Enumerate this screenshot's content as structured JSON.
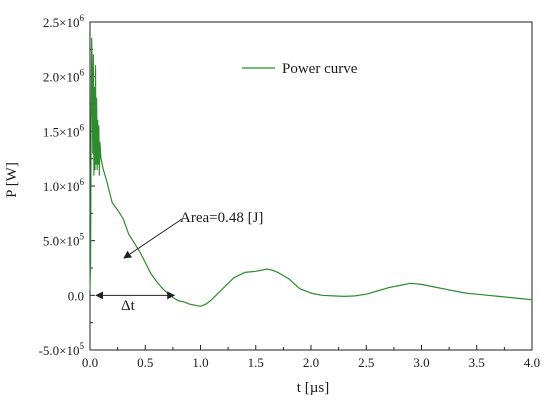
{
  "chart_data": {
    "type": "line",
    "title": "",
    "xlabel": "t [µs]",
    "ylabel": "P [W]",
    "xlim": [
      0.0,
      4.0
    ],
    "ylim": [
      -500000,
      2500000
    ],
    "x_ticks": [
      0.0,
      0.5,
      1.0,
      1.5,
      2.0,
      2.5,
      3.0,
      3.5,
      4.0
    ],
    "x_tick_labels": [
      "0.0",
      "0.5",
      "1.0",
      "1.5",
      "2.0",
      "2.5",
      "3.0",
      "3.5",
      "4.0"
    ],
    "y_ticks": [
      -500000,
      0,
      500000,
      1000000,
      1500000,
      2000000,
      2500000
    ],
    "y_tick_labels": [
      {
        "mantissa": "-5.0×10",
        "exp": "5"
      },
      {
        "mantissa": "0.0",
        "exp": ""
      },
      {
        "mantissa": "5.0×10",
        "exp": "5"
      },
      {
        "mantissa": "1.0×10",
        "exp": "6"
      },
      {
        "mantissa": "1.5×10",
        "exp": "6"
      },
      {
        "mantissa": "2.0×10",
        "exp": "6"
      },
      {
        "mantissa": "2.5×10",
        "exp": "6"
      }
    ],
    "grid": false,
    "legend": "top-right",
    "series": [
      {
        "name": "Power curve",
        "color": "#2e8b2e",
        "x": [
          0.0,
          0.005,
          0.01,
          0.015,
          0.02,
          0.025,
          0.03,
          0.035,
          0.04,
          0.045,
          0.05,
          0.055,
          0.06,
          0.065,
          0.07,
          0.075,
          0.08,
          0.085,
          0.09,
          0.1,
          0.12,
          0.15,
          0.2,
          0.25,
          0.3,
          0.35,
          0.4,
          0.45,
          0.5,
          0.55,
          0.6,
          0.65,
          0.7,
          0.75,
          0.8,
          0.85,
          0.9,
          0.95,
          1.0,
          1.05,
          1.1,
          1.2,
          1.3,
          1.4,
          1.5,
          1.6,
          1.65,
          1.7,
          1.8,
          1.9,
          2.0,
          2.1,
          2.2,
          2.3,
          2.4,
          2.5,
          2.6,
          2.7,
          2.8,
          2.9,
          3.0,
          3.1,
          3.2,
          3.3,
          3.4,
          3.5,
          3.6,
          3.7,
          3.8,
          3.9,
          4.0
        ],
        "y": [
          50000,
          300000,
          1500000,
          2350000,
          1900000,
          1300000,
          2200000,
          1100000,
          1900000,
          1150000,
          2100000,
          1200000,
          1800000,
          1150000,
          1600000,
          1200000,
          1550000,
          1100000,
          1400000,
          1250000,
          1150000,
          1050000,
          850000,
          780000,
          700000,
          560000,
          480000,
          400000,
          300000,
          200000,
          130000,
          70000,
          20000,
          -20000,
          -50000,
          -60000,
          -80000,
          -90000,
          -100000,
          -80000,
          -40000,
          60000,
          160000,
          210000,
          220000,
          240000,
          230000,
          210000,
          150000,
          60000,
          20000,
          0,
          -5000,
          -10000,
          -5000,
          10000,
          40000,
          70000,
          90000,
          110000,
          100000,
          80000,
          60000,
          40000,
          20000,
          10000,
          0,
          -10000,
          -20000,
          -30000,
          -40000
        ]
      }
    ],
    "annotations": [
      {
        "text": "Area=0.48 [J]"
      },
      {
        "text": "Δt"
      }
    ]
  }
}
